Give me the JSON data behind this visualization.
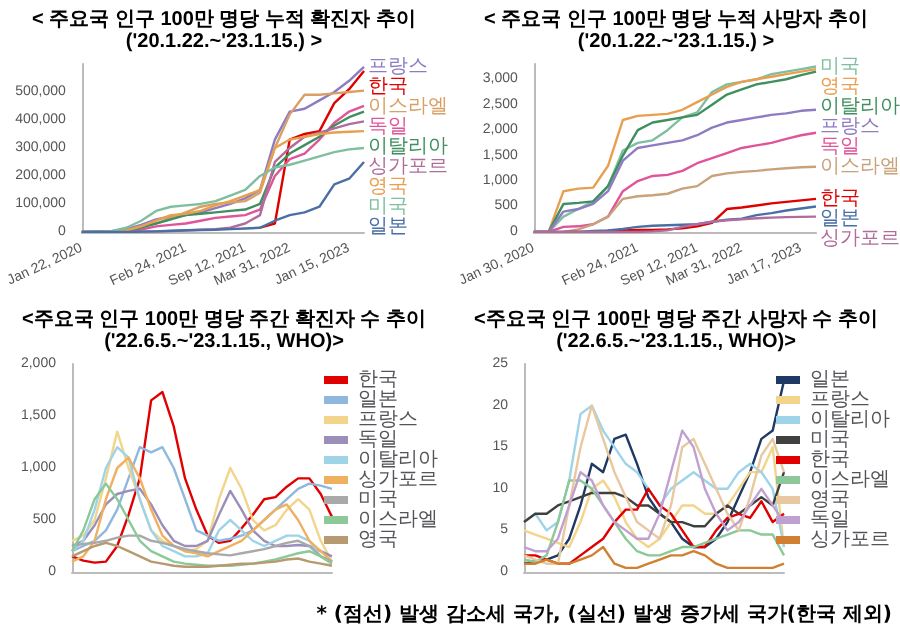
{
  "chart_data": [
    {
      "type": "line",
      "title": "< 주요국 인구 100만 명당 누적 확진자 추이",
      "subtitle": "('20.1.22.~'23.1.15.) >",
      "legend": false,
      "categories": [
        "Jan 22, 2020",
        null,
        null,
        null,
        null,
        null,
        null,
        "Feb 24, 2021",
        null,
        null,
        null,
        "Sep 12, 2021",
        null,
        null,
        "Mar 31, 2022",
        null,
        null,
        null,
        "Jan 15, 2023",
        null
      ],
      "ylim": [
        0,
        600000
      ],
      "yticks": [
        0,
        {
          "value": 100000,
          "label": "100,000"
        },
        {
          "value": 200000,
          "label": "200,000"
        },
        {
          "value": 300000,
          "label": "300,000"
        },
        {
          "value": 400000,
          "label": "400,000"
        },
        {
          "value": 500000,
          "label": "500,000"
        }
      ],
      "series": [
        {
          "name": "프랑스",
          "color": "#8e7cc3",
          "values": [
            0,
            1000,
            3000,
            10000,
            25000,
            45000,
            55000,
            60000,
            70000,
            85000,
            100000,
            120000,
            150000,
            330000,
            430000,
            440000,
            470000,
            500000,
            540000,
            590000
          ]
        },
        {
          "name": "한국",
          "color": "#e00000",
          "values": [
            null,
            null,
            null,
            null,
            null,
            null,
            null,
            null,
            null,
            null,
            null,
            null,
            15000,
            30000,
            330000,
            350000,
            360000,
            460000,
            510000,
            575000
          ]
        },
        {
          "name": "이스라엘",
          "color": "#d9a066",
          "values": [
            0,
            0,
            1000,
            5000,
            20000,
            30000,
            50000,
            70000,
            90000,
            100000,
            105000,
            110000,
            140000,
            300000,
            420000,
            490000,
            490000,
            495000,
            500000,
            505000
          ]
        },
        {
          "name": "독일",
          "color": "#e0559a",
          "values": [
            null,
            null,
            null,
            3000,
            8000,
            20000,
            25000,
            30000,
            40000,
            50000,
            55000,
            60000,
            80000,
            200000,
            260000,
            280000,
            330000,
            390000,
            430000,
            450000
          ]
        },
        {
          "name": "이탈리아",
          "color": "#3f8f5f",
          "values": [
            0,
            1000,
            2000,
            4000,
            15000,
            30000,
            45000,
            60000,
            65000,
            70000,
            75000,
            80000,
            100000,
            230000,
            280000,
            310000,
            340000,
            380000,
            410000,
            430000
          ]
        },
        {
          "name": "싱가포르",
          "color": "#b06c9c",
          "values": [
            0,
            0,
            0,
            0,
            1000,
            2000,
            3000,
            5000,
            8000,
            10000,
            15000,
            30000,
            60000,
            250000,
            300000,
            340000,
            355000,
            370000,
            385000,
            395000
          ]
        },
        {
          "name": "영국",
          "color": "#e8a050",
          "values": [
            null,
            null,
            2000,
            5000,
            20000,
            40000,
            60000,
            65000,
            75000,
            95000,
            110000,
            130000,
            150000,
            300000,
            330000,
            340000,
            350000,
            355000,
            358000,
            360000
          ]
        },
        {
          "name": "미국",
          "color": "#7fbf9f",
          "values": [
            0,
            0,
            3000,
            15000,
            40000,
            75000,
            90000,
            95000,
            100000,
            110000,
            130000,
            150000,
            200000,
            230000,
            240000,
            255000,
            270000,
            285000,
            295000,
            300000
          ]
        },
        {
          "name": "일본",
          "color": "#4a6fa5",
          "values": [
            0,
            0,
            0,
            0,
            1000,
            2000,
            4000,
            6000,
            7000,
            8000,
            10000,
            12000,
            15000,
            40000,
            60000,
            70000,
            90000,
            170000,
            190000,
            250000
          ]
        }
      ]
    },
    {
      "type": "line",
      "title": "< 주요국 인구 100만 명당 누적 사망자 추이",
      "subtitle": "('20.1.22.~'23.1.15.) >",
      "legend": false,
      "categories": [
        "Jan 30, 2020",
        null,
        null,
        null,
        null,
        null,
        null,
        "Feb 24, 2021",
        null,
        null,
        null,
        "Sep 12, 2021",
        null,
        null,
        "Mar 31, 2022",
        null,
        null,
        null,
        "Jan 17, 2023",
        null
      ],
      "ylim": [
        0,
        3300
      ],
      "yticks": [
        0,
        500,
        {
          "value": 1000,
          "label": "1,000"
        },
        {
          "value": 1500,
          "label": "1,500"
        },
        {
          "value": 2000,
          "label": "2,000"
        },
        {
          "value": 2500,
          "label": "2,500"
        },
        {
          "value": 3000,
          "label": "3,000"
        }
      ],
      "series": [
        {
          "name": "미국",
          "color": "#7fbf9f",
          "values": [
            0,
            0,
            300,
            450,
            600,
            900,
            1600,
            1750,
            1800,
            2000,
            2250,
            2350,
            2750,
            2900,
            2950,
            3000,
            3100,
            3150,
            3200,
            3250
          ]
        },
        {
          "name": "영국",
          "color": "#e8a050",
          "values": [
            0,
            0,
            800,
            850,
            870,
            1300,
            2200,
            2280,
            2300,
            2320,
            2400,
            2550,
            2700,
            2850,
            2950,
            3000,
            3050,
            3100,
            3150,
            3200
          ]
        },
        {
          "name": "이탈리아",
          "color": "#3f8f5f",
          "values": [
            0,
            0,
            550,
            570,
            600,
            900,
            1500,
            2000,
            2150,
            2200,
            2250,
            2300,
            2500,
            2700,
            2800,
            2900,
            2950,
            3000,
            3080,
            3150
          ]
        },
        {
          "name": "프랑스",
          "color": "#8e7cc3",
          "values": [
            0,
            0,
            400,
            450,
            550,
            800,
            1400,
            1650,
            1700,
            1750,
            1800,
            1900,
            2050,
            2150,
            2200,
            2250,
            2300,
            2330,
            2380,
            2400
          ]
        },
        {
          "name": "독일",
          "color": "#e0559a",
          "values": [
            0,
            0,
            100,
            110,
            150,
            300,
            800,
            1000,
            1100,
            1120,
            1200,
            1350,
            1450,
            1550,
            1650,
            1700,
            1750,
            1830,
            1900,
            1950
          ]
        },
        {
          "name": "이스라엘",
          "color": "#c8a27a",
          "values": [
            0,
            0,
            0,
            50,
            150,
            300,
            650,
            700,
            720,
            750,
            850,
            900,
            1100,
            1150,
            1180,
            1200,
            1230,
            1250,
            1270,
            1280
          ]
        },
        {
          "name": "한국",
          "color": "#e00000",
          "values": [
            null,
            null,
            0,
            0,
            0,
            20,
            30,
            40,
            40,
            50,
            70,
            110,
            180,
            450,
            480,
            520,
            560,
            590,
            620,
            650
          ]
        },
        {
          "name": "일본",
          "color": "#4a6fa5",
          "values": [
            0,
            0,
            0,
            0,
            20,
            30,
            60,
            100,
            120,
            130,
            140,
            150,
            200,
            240,
            260,
            330,
            370,
            420,
            460,
            500
          ]
        },
        {
          "name": "싱가포르",
          "color": "#b06c9c",
          "values": [
            0,
            0,
            0,
            0,
            0,
            0,
            0,
            0,
            10,
            30,
            100,
            150,
            200,
            230,
            250,
            270,
            280,
            290,
            295,
            300
          ]
        }
      ]
    },
    {
      "type": "line",
      "title": "<주요국 인구 100만 명당 주간 확진자 수 추이",
      "subtitle": "('22.6.5.~'23.1.15., WHO)>",
      "legend": "right",
      "categories": [
        null,
        null,
        null,
        null,
        null,
        null,
        null,
        null,
        null,
        null,
        null,
        null,
        null,
        null,
        null,
        null,
        null,
        null,
        null,
        null,
        null,
        null,
        null,
        null
      ],
      "ylim": [
        0,
        2000
      ],
      "yticks": [
        0,
        500,
        {
          "value": 1000,
          "label": "1,000"
        },
        {
          "value": 1500,
          "label": "1,500"
        },
        {
          "value": 2000,
          "label": "2,000"
        }
      ],
      "series": [
        {
          "name": "한국",
          "color": "#e00000",
          "values": [
            150,
            110,
            90,
            100,
            250,
            550,
            900,
            1650,
            1730,
            1400,
            900,
            600,
            350,
            280,
            300,
            420,
            550,
            700,
            720,
            820,
            900,
            900,
            750,
            530
          ]
        },
        {
          "name": "일본",
          "color": "#8fb8de",
          "values": [
            200,
            250,
            300,
            400,
            600,
            900,
            1200,
            1150,
            1200,
            1000,
            700,
            400,
            350,
            300,
            320,
            350,
            400,
            500,
            600,
            700,
            800,
            850,
            830,
            800
          ]
        },
        {
          "name": "프랑스",
          "color": "#f2d58a",
          "values": [
            300,
            350,
            500,
            900,
            1350,
            1000,
            700,
            400,
            300,
            250,
            200,
            220,
            300,
            700,
            1000,
            800,
            500,
            400,
            450,
            600,
            700,
            600,
            300,
            100
          ]
        },
        {
          "name": "독일",
          "color": "#9a8fb8",
          "values": [
            250,
            300,
            450,
            650,
            750,
            780,
            800,
            650,
            450,
            300,
            250,
            250,
            300,
            550,
            780,
            600,
            400,
            300,
            250,
            250,
            260,
            250,
            200,
            150
          ]
        },
        {
          "name": "이탈리아",
          "color": "#9fd4e8",
          "values": [
            200,
            300,
            600,
            1000,
            1200,
            1100,
            700,
            400,
            250,
            200,
            150,
            150,
            180,
            400,
            500,
            400,
            300,
            250,
            300,
            350,
            350,
            300,
            150,
            100
          ]
        },
        {
          "name": "싱가포르",
          "color": "#f0b060",
          "values": [
            100,
            150,
            300,
            700,
            1000,
            1100,
            900,
            600,
            350,
            250,
            200,
            180,
            150,
            200,
            250,
            300,
            400,
            500,
            600,
            650,
            500,
            300,
            200,
            100
          ]
        },
        {
          "name": "미국",
          "color": "#a9a9a9",
          "values": [
            250,
            270,
            280,
            300,
            330,
            350,
            350,
            300,
            280,
            250,
            220,
            200,
            180,
            170,
            160,
            180,
            200,
            220,
            250,
            280,
            300,
            250,
            150,
            100
          ]
        },
        {
          "name": "이스라엘",
          "color": "#8cc898",
          "values": [
            200,
            400,
            700,
            850,
            700,
            500,
            300,
            200,
            150,
            100,
            80,
            70,
            60,
            60,
            60,
            70,
            80,
            100,
            120,
            150,
            180,
            200,
            150,
            80
          ]
        },
        {
          "name": "영국",
          "color": "#b89a70",
          "values": [
            150,
            200,
            250,
            280,
            250,
            200,
            150,
            100,
            80,
            60,
            50,
            50,
            50,
            60,
            70,
            80,
            80,
            90,
            100,
            120,
            130,
            100,
            80,
            60
          ]
        }
      ]
    },
    {
      "type": "line",
      "title": "<주요국 인구 100만 명당 주간 사망자 수 추이",
      "subtitle": "('22.6.5.~'23.1.15., WHO)>",
      "legend": "right",
      "categories": [
        null,
        null,
        null,
        null,
        null,
        null,
        null,
        null,
        null,
        null,
        null,
        null,
        null,
        null,
        null,
        null,
        null,
        null,
        null,
        null,
        null,
        null,
        null,
        null
      ],
      "ylim": [
        0,
        25
      ],
      "yticks": [
        0,
        5,
        10,
        15,
        20,
        25
      ],
      "annotations": [
        "* (점선) 발생 감소세 국가, (실선) 발생 증가세 국가(한국 제외)"
      ],
      "series": [
        {
          "name": "일본",
          "color": "#1f3864",
          "values": [
            1,
            1.3,
            1.5,
            2,
            4,
            8,
            13,
            12,
            16,
            16.5,
            13,
            9,
            7,
            6,
            4,
            3,
            3,
            4,
            6,
            9,
            12,
            16,
            17,
            23
          ]
        },
        {
          "name": "프랑스",
          "color": "#f2d58a",
          "values": [
            5,
            4.5,
            4,
            3.5,
            3,
            6,
            10,
            11,
            9,
            6,
            4,
            3,
            4,
            6,
            8,
            8,
            7,
            7,
            8,
            10,
            12,
            12,
            15,
            3
          ]
        },
        {
          "name": "이탈리아",
          "color": "#9fd4e8",
          "values": [
            6,
            7,
            5,
            6,
            11,
            19,
            20,
            17,
            15,
            13,
            12,
            10,
            8,
            10,
            11,
            12,
            11,
            10,
            10,
            12,
            13,
            12,
            10,
            3
          ]
        },
        {
          "name": "미국",
          "color": "#404040",
          "values": [
            6,
            7,
            7,
            8,
            8.5,
            9,
            9.5,
            9.5,
            9.5,
            9,
            8,
            8,
            7,
            6,
            6,
            5.5,
            5.5,
            7,
            8,
            7,
            8,
            9,
            8,
            12
          ]
        },
        {
          "name": "한국",
          "color": "#e00000",
          "values": [
            2,
            2,
            1.5,
            1,
            1,
            2,
            3,
            4,
            6,
            7.5,
            7.5,
            10,
            8,
            7,
            5,
            3,
            3,
            5,
            6.5,
            7,
            6.5,
            8.5,
            6,
            7
          ]
        },
        {
          "name": "이스라엘",
          "color": "#8cc898",
          "values": [
            1.5,
            1.2,
            2,
            6,
            11,
            11,
            10,
            8,
            6,
            4,
            2.5,
            2,
            2,
            2.5,
            3,
            3,
            3.5,
            4,
            4.5,
            5,
            5,
            4.5,
            4.5,
            2
          ]
        },
        {
          "name": "영국",
          "color": "#e8c8a0",
          "values": [
            2,
            1.5,
            1,
            1,
            8,
            15,
            20,
            16,
            12,
            9,
            6,
            5,
            4,
            8,
            15,
            16,
            13,
            10,
            7,
            5,
            9,
            14,
            16,
            12
          ]
        },
        {
          "name": "독일",
          "color": "#c0a0d0",
          "values": [
            3,
            2.5,
            2.5,
            4,
            8,
            12,
            11,
            8,
            6,
            5,
            4,
            4,
            7,
            12,
            17,
            15,
            10,
            7,
            5,
            6,
            8,
            10,
            8,
            6
          ]
        },
        {
          "name": "싱가포르",
          "color": "#d08030",
          "values": [
            1,
            1,
            1.5,
            1,
            1,
            1.5,
            2,
            3,
            1,
            0.5,
            0.5,
            1,
            1.5,
            2,
            2,
            2.5,
            2,
            1,
            0.5,
            0.5,
            0.5,
            0.5,
            0.5,
            1
          ]
        }
      ]
    }
  ]
}
